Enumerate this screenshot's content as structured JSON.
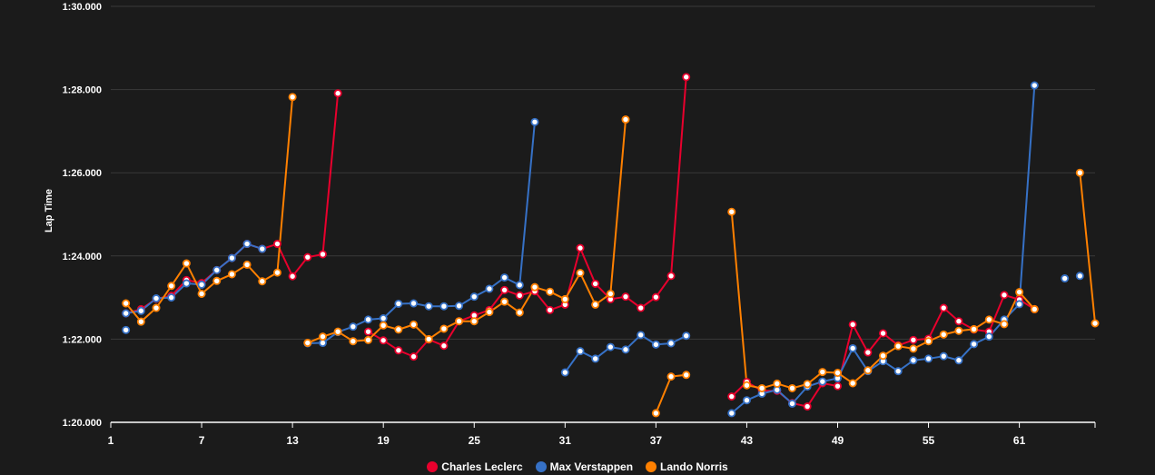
{
  "chart_data": {
    "type": "line",
    "ylabel": "Lap Time",
    "xlabel": "",
    "y_ticks": [
      "1:20.000",
      "1:22.000",
      "1:24.000",
      "1:26.000",
      "1:28.000",
      "1:30.000"
    ],
    "ylim_seconds": [
      80,
      90
    ],
    "x_ticks": [
      "1",
      "7",
      "13",
      "19",
      "25",
      "31",
      "37",
      "43",
      "49",
      "55",
      "61"
    ],
    "xlim": [
      1,
      66
    ],
    "grid": "horizontal",
    "legend_position": "bottom",
    "series": [
      {
        "name": "Charles Leclerc",
        "color": "#e8002d",
        "marker_color": "#e8002d",
        "x": [
          2,
          3,
          4,
          5,
          6,
          7,
          8,
          9,
          10,
          11,
          12,
          13,
          14,
          15,
          16,
          null,
          18,
          19,
          20,
          21,
          22,
          23,
          24,
          25,
          26,
          27,
          28,
          29,
          30,
          31,
          32,
          33,
          34,
          35,
          36,
          37,
          38,
          39,
          null,
          42,
          43,
          44,
          45,
          46,
          47,
          48,
          49,
          50,
          51,
          52,
          53,
          54,
          55,
          56,
          57,
          58,
          59,
          60,
          61,
          62
        ],
        "y": [
          82.62,
          82.72,
          82.97,
          83.04,
          83.42,
          83.35,
          83.66,
          83.95,
          84.29,
          84.17,
          84.29,
          83.51,
          83.97,
          84.04,
          87.91,
          null,
          82.18,
          81.97,
          81.73,
          81.58,
          81.99,
          81.84,
          82.43,
          82.57,
          82.7,
          83.18,
          83.05,
          83.15,
          82.7,
          82.83,
          84.19,
          83.33,
          82.96,
          83.02,
          82.75,
          83.01,
          83.52,
          88.3,
          null,
          80.62,
          80.97,
          80.76,
          80.76,
          80.46,
          80.38,
          80.94,
          80.87,
          82.35,
          81.68,
          82.14,
          81.85,
          81.98,
          82.01,
          82.75,
          82.43,
          82.23,
          82.18,
          83.06,
          82.95,
          82.72
        ]
      },
      {
        "name": "Max Verstappen",
        "color": "#3671c6",
        "marker_color": "#3671c6",
        "x": [
          2,
          3,
          4,
          5,
          6,
          7,
          8,
          9,
          10,
          11,
          null,
          14,
          15,
          16,
          17,
          18,
          19,
          20,
          21,
          22,
          23,
          24,
          25,
          26,
          27,
          28,
          29,
          null,
          31,
          32,
          33,
          34,
          35,
          36,
          37,
          38,
          39,
          null,
          42,
          43,
          44,
          45,
          46,
          47,
          48,
          49,
          50,
          51,
          52,
          53,
          54,
          55,
          56,
          57,
          58,
          59,
          60,
          61,
          62
        ],
        "y": [
          82.62,
          82.68,
          82.98,
          83.0,
          83.34,
          83.31,
          83.66,
          83.95,
          84.29,
          84.17,
          null,
          81.9,
          81.91,
          82.17,
          82.3,
          82.47,
          82.5,
          82.85,
          82.86,
          82.79,
          82.79,
          82.8,
          83.02,
          83.21,
          83.48,
          83.3,
          87.22,
          null,
          81.2,
          81.71,
          81.53,
          81.81,
          81.75,
          82.1,
          81.87,
          81.9,
          82.08,
          null,
          80.22,
          80.53,
          80.69,
          80.78,
          80.45,
          80.86,
          80.98,
          81.06,
          81.78,
          81.23,
          81.47,
          81.23,
          81.49,
          81.53,
          81.59,
          81.49,
          81.88,
          82.06,
          82.47,
          82.84,
          88.1
        ]
      },
      {
        "name": "Lando Norris",
        "color": "#ff8000",
        "marker_color": "#ff8000",
        "x": [
          2,
          3,
          4,
          5,
          6,
          7,
          8,
          9,
          10,
          11,
          12,
          13,
          null,
          14,
          15,
          16,
          17,
          18,
          19,
          20,
          21,
          22,
          23,
          24,
          25,
          26,
          27,
          28,
          29,
          30,
          31,
          32,
          33,
          34,
          35,
          null,
          37,
          38,
          39,
          null,
          42,
          43,
          44,
          45,
          46,
          47,
          48,
          49,
          50,
          51,
          52,
          53,
          54,
          55,
          56,
          57,
          58,
          59,
          60,
          61,
          62,
          null,
          65,
          66
        ],
        "y": [
          82.86,
          82.42,
          82.75,
          83.28,
          83.82,
          83.09,
          83.4,
          83.56,
          83.79,
          83.39,
          83.6,
          87.82,
          null,
          81.91,
          82.06,
          82.18,
          81.95,
          81.98,
          82.33,
          82.23,
          82.35,
          82.0,
          82.25,
          82.43,
          82.43,
          82.65,
          82.9,
          82.64,
          83.25,
          83.14,
          82.96,
          83.59,
          82.83,
          83.09,
          87.28,
          null,
          80.22,
          81.1,
          81.14,
          null,
          85.06,
          80.89,
          80.82,
          80.93,
          80.82,
          80.92,
          81.21,
          81.19,
          80.94,
          81.25,
          81.6,
          81.83,
          81.77,
          81.95,
          82.11,
          82.2,
          82.24,
          82.47,
          82.36,
          83.13,
          82.72,
          null,
          86.0,
          82.38
        ]
      }
    ],
    "extra_points": [
      {
        "series": "Max Verstappen",
        "x": [
          2,
          64,
          65
        ],
        "y": [
          82.22,
          83.46,
          83.52
        ]
      }
    ]
  },
  "legend": {
    "items": [
      {
        "label": "Charles Leclerc",
        "color": "#e8002d"
      },
      {
        "label": "Max Verstappen",
        "color": "#3671c6"
      },
      {
        "label": "Lando Norris",
        "color": "#ff8000"
      }
    ]
  }
}
